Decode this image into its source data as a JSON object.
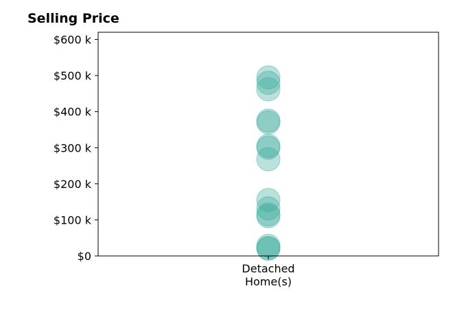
{
  "chart_data": {
    "type": "scatter",
    "title": "Selling Price",
    "xlabel": "",
    "ylabel": "",
    "categories": [
      "Detached\nHome(s)"
    ],
    "y_ticks": [
      0,
      100000,
      200000,
      300000,
      400000,
      500000,
      600000
    ],
    "y_tick_labels": [
      "$0",
      "$100 k",
      "$200 k",
      "$300 k",
      "$400 k",
      "$500 k",
      "$600 k"
    ],
    "ylim": [
      0,
      620000
    ],
    "grid": false,
    "legend": "none",
    "point_color": "#3aa99a",
    "point_opacity": 0.35,
    "series": [
      {
        "category": "Detached\nHome(s)",
        "values": [
          495000,
          480000,
          462000,
          375000,
          370000,
          305000,
          300000,
          268000,
          155000,
          132000,
          115000,
          110000,
          28000,
          22000,
          20000
        ]
      }
    ]
  }
}
